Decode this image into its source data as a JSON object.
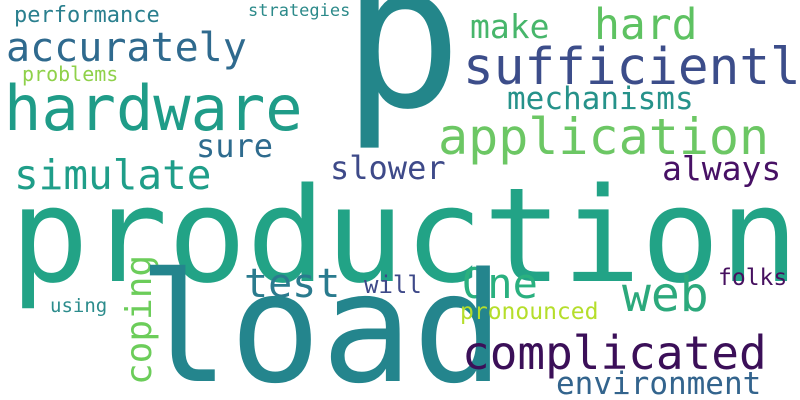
{
  "words": [
    {
      "text": "performance",
      "color": "#2a7f8e"
    },
    {
      "text": "strategies",
      "color": "#2c8a8a"
    },
    {
      "text": "make",
      "color": "#47b66b"
    },
    {
      "text": "hard",
      "color": "#5ec262"
    },
    {
      "text": "accurately",
      "color": "#2f6a8e"
    },
    {
      "text": "p",
      "color": "#23868a"
    },
    {
      "text": "sufficiently",
      "color": "#3c4d8a"
    },
    {
      "text": "problems",
      "color": "#8fd14a"
    },
    {
      "text": "hardware",
      "color": "#1f9c88"
    },
    {
      "text": "mechanisms",
      "color": "#26928a"
    },
    {
      "text": "application",
      "color": "#6cc764"
    },
    {
      "text": "sure",
      "color": "#2e6b8e"
    },
    {
      "text": "simulate",
      "color": "#1f9e89"
    },
    {
      "text": "slower",
      "color": "#3e4a89"
    },
    {
      "text": "always",
      "color": "#471165"
    },
    {
      "text": "production",
      "color": "#22a386"
    },
    {
      "text": "coping",
      "color": "#6ccd5a"
    },
    {
      "text": "test",
      "color": "#2a7b8e"
    },
    {
      "text": "One",
      "color": "#2ab07f"
    },
    {
      "text": "web",
      "color": "#2ca97c"
    },
    {
      "text": "will",
      "color": "#3e4989"
    },
    {
      "text": "folks",
      "color": "#46105f"
    },
    {
      "text": "using",
      "color": "#2c8c8c"
    },
    {
      "text": "load",
      "color": "#24858d"
    },
    {
      "text": "pronounced",
      "color": "#b5de2b"
    },
    {
      "text": "complicated",
      "color": "#3b0f58"
    },
    {
      "text": "environment",
      "color": "#33648d"
    }
  ]
}
